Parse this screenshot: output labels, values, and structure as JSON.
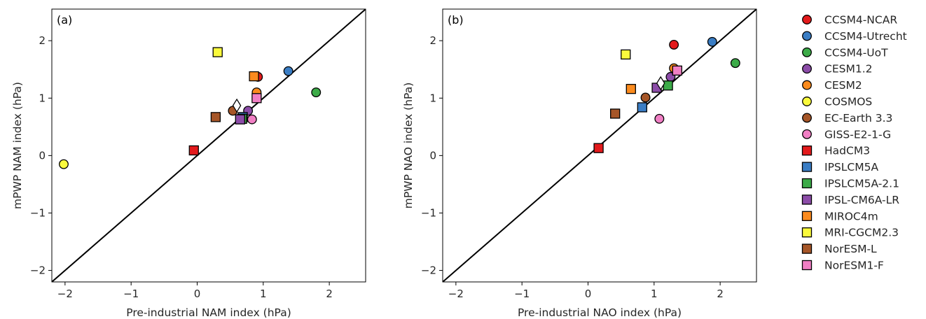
{
  "legend": [
    {
      "name": "CCSM4-NCAR",
      "marker": "circle",
      "color": "#e31a1c"
    },
    {
      "name": "CCSM4-Utrecht",
      "marker": "circle",
      "color": "#3a7dc4"
    },
    {
      "name": "CCSM4-UoT",
      "marker": "circle",
      "color": "#3cab48"
    },
    {
      "name": "CESM1.2",
      "marker": "circle",
      "color": "#8c4ca8"
    },
    {
      "name": "CESM2",
      "marker": "circle",
      "color": "#fb8b1e"
    },
    {
      "name": "COSMOS",
      "marker": "circle",
      "color": "#fafa3c"
    },
    {
      "name": "EC-Earth 3.3",
      "marker": "circle",
      "color": "#a65628"
    },
    {
      "name": "GISS-E2-1-G",
      "marker": "circle",
      "color": "#f07fc4"
    },
    {
      "name": "HadCM3",
      "marker": "square",
      "color": "#e31a1c"
    },
    {
      "name": "IPSLCM5A",
      "marker": "square",
      "color": "#3a7dc4"
    },
    {
      "name": "IPSLCM5A-2.1",
      "marker": "square",
      "color": "#3cab48"
    },
    {
      "name": "IPSL-CM6A-LR",
      "marker": "square",
      "color": "#8c4ca8"
    },
    {
      "name": "MIROC4m",
      "marker": "square",
      "color": "#fb8b1e"
    },
    {
      "name": "MRI-CGCM2.3",
      "marker": "square",
      "color": "#fafa3c"
    },
    {
      "name": "NorESM-L",
      "marker": "square",
      "color": "#a65628"
    },
    {
      "name": "NorESM1-F",
      "marker": "square",
      "color": "#f07fc4"
    }
  ],
  "chart_data": [
    {
      "type": "scatter",
      "panel": "(a)",
      "xlabel": "Pre-industrial NAM index (hPa)",
      "ylabel": "mPWP NAM index (hPa)",
      "xlim": [
        -2.2,
        2.55
      ],
      "ylim": [
        -2.2,
        2.55
      ],
      "xticks": [
        -2,
        -1,
        0,
        1,
        2
      ],
      "yticks": [
        -2,
        -1,
        0,
        1,
        2
      ],
      "reference_line": "1:1",
      "points": [
        {
          "model": "CCSM4-NCAR",
          "x": 0.92,
          "y": 1.37
        },
        {
          "model": "CCSM4-Utrecht",
          "x": 1.38,
          "y": 1.47
        },
        {
          "model": "CCSM4-UoT",
          "x": 1.8,
          "y": 1.1
        },
        {
          "model": "CESM1.2",
          "x": 0.77,
          "y": 0.78
        },
        {
          "model": "CESM2",
          "x": 0.9,
          "y": 1.1
        },
        {
          "model": "COSMOS",
          "x": -2.02,
          "y": -0.15
        },
        {
          "model": "EC-Earth 3.3",
          "x": 0.54,
          "y": 0.78
        },
        {
          "model": "GISS-E2-1-G",
          "x": 0.83,
          "y": 0.63
        },
        {
          "model": "HadCM3",
          "x": -0.05,
          "y": 0.09
        },
        {
          "model": "IPSLCM5A",
          "x": 0.69,
          "y": 0.67
        },
        {
          "model": "IPSLCM5A-2.1",
          "x": 0.68,
          "y": 0.64
        },
        {
          "model": "IPSL-CM6A-LR",
          "x": 0.65,
          "y": 0.63
        },
        {
          "model": "MIROC4m",
          "x": 0.86,
          "y": 1.38
        },
        {
          "model": "MRI-CGCM2.3",
          "x": 0.31,
          "y": 1.8
        },
        {
          "model": "NorESM-L",
          "x": 0.28,
          "y": 0.67
        },
        {
          "model": "NorESM1-F",
          "x": 0.9,
          "y": 1.0
        },
        {
          "model": "multi-model mean",
          "marker": "diamond",
          "x": 0.6,
          "y": 0.87
        }
      ]
    },
    {
      "type": "scatter",
      "panel": "(b)",
      "xlabel": "Pre-industrial NAO index (hPa)",
      "ylabel": "mPWP NAO index (hPa)",
      "xlim": [
        -2.2,
        2.55
      ],
      "ylim": [
        -2.2,
        2.55
      ],
      "xticks": [
        -2,
        -1,
        0,
        1,
        2
      ],
      "yticks": [
        -2,
        -1,
        0,
        1,
        2
      ],
      "reference_line": "1:1",
      "points": [
        {
          "model": "CCSM4-NCAR",
          "x": 1.3,
          "y": 1.93
        },
        {
          "model": "CCSM4-Utrecht",
          "x": 1.88,
          "y": 1.98
        },
        {
          "model": "CCSM4-UoT",
          "x": 2.23,
          "y": 1.61
        },
        {
          "model": "CESM1.2",
          "x": 1.25,
          "y": 1.37
        },
        {
          "model": "CESM2",
          "x": 1.3,
          "y": 1.52
        },
        {
          "model": "EC-Earth 3.3",
          "x": 0.87,
          "y": 1.01
        },
        {
          "model": "GISS-E2-1-G",
          "x": 1.08,
          "y": 0.64
        },
        {
          "model": "HadCM3",
          "x": 0.16,
          "y": 0.13
        },
        {
          "model": "IPSLCM5A",
          "x": 0.82,
          "y": 0.84
        },
        {
          "model": "IPSLCM5A-2.1",
          "x": 1.21,
          "y": 1.22
        },
        {
          "model": "IPSL-CM6A-LR",
          "x": 1.04,
          "y": 1.18
        },
        {
          "model": "MIROC4m",
          "x": 0.65,
          "y": 1.16
        },
        {
          "model": "MRI-CGCM2.3",
          "x": 0.57,
          "y": 1.76
        },
        {
          "model": "NorESM-L",
          "x": 0.41,
          "y": 0.73
        },
        {
          "model": "NorESM1-F",
          "x": 1.35,
          "y": 1.48
        },
        {
          "model": "multi-model mean",
          "marker": "diamond",
          "x": 1.1,
          "y": 1.26
        }
      ]
    }
  ]
}
